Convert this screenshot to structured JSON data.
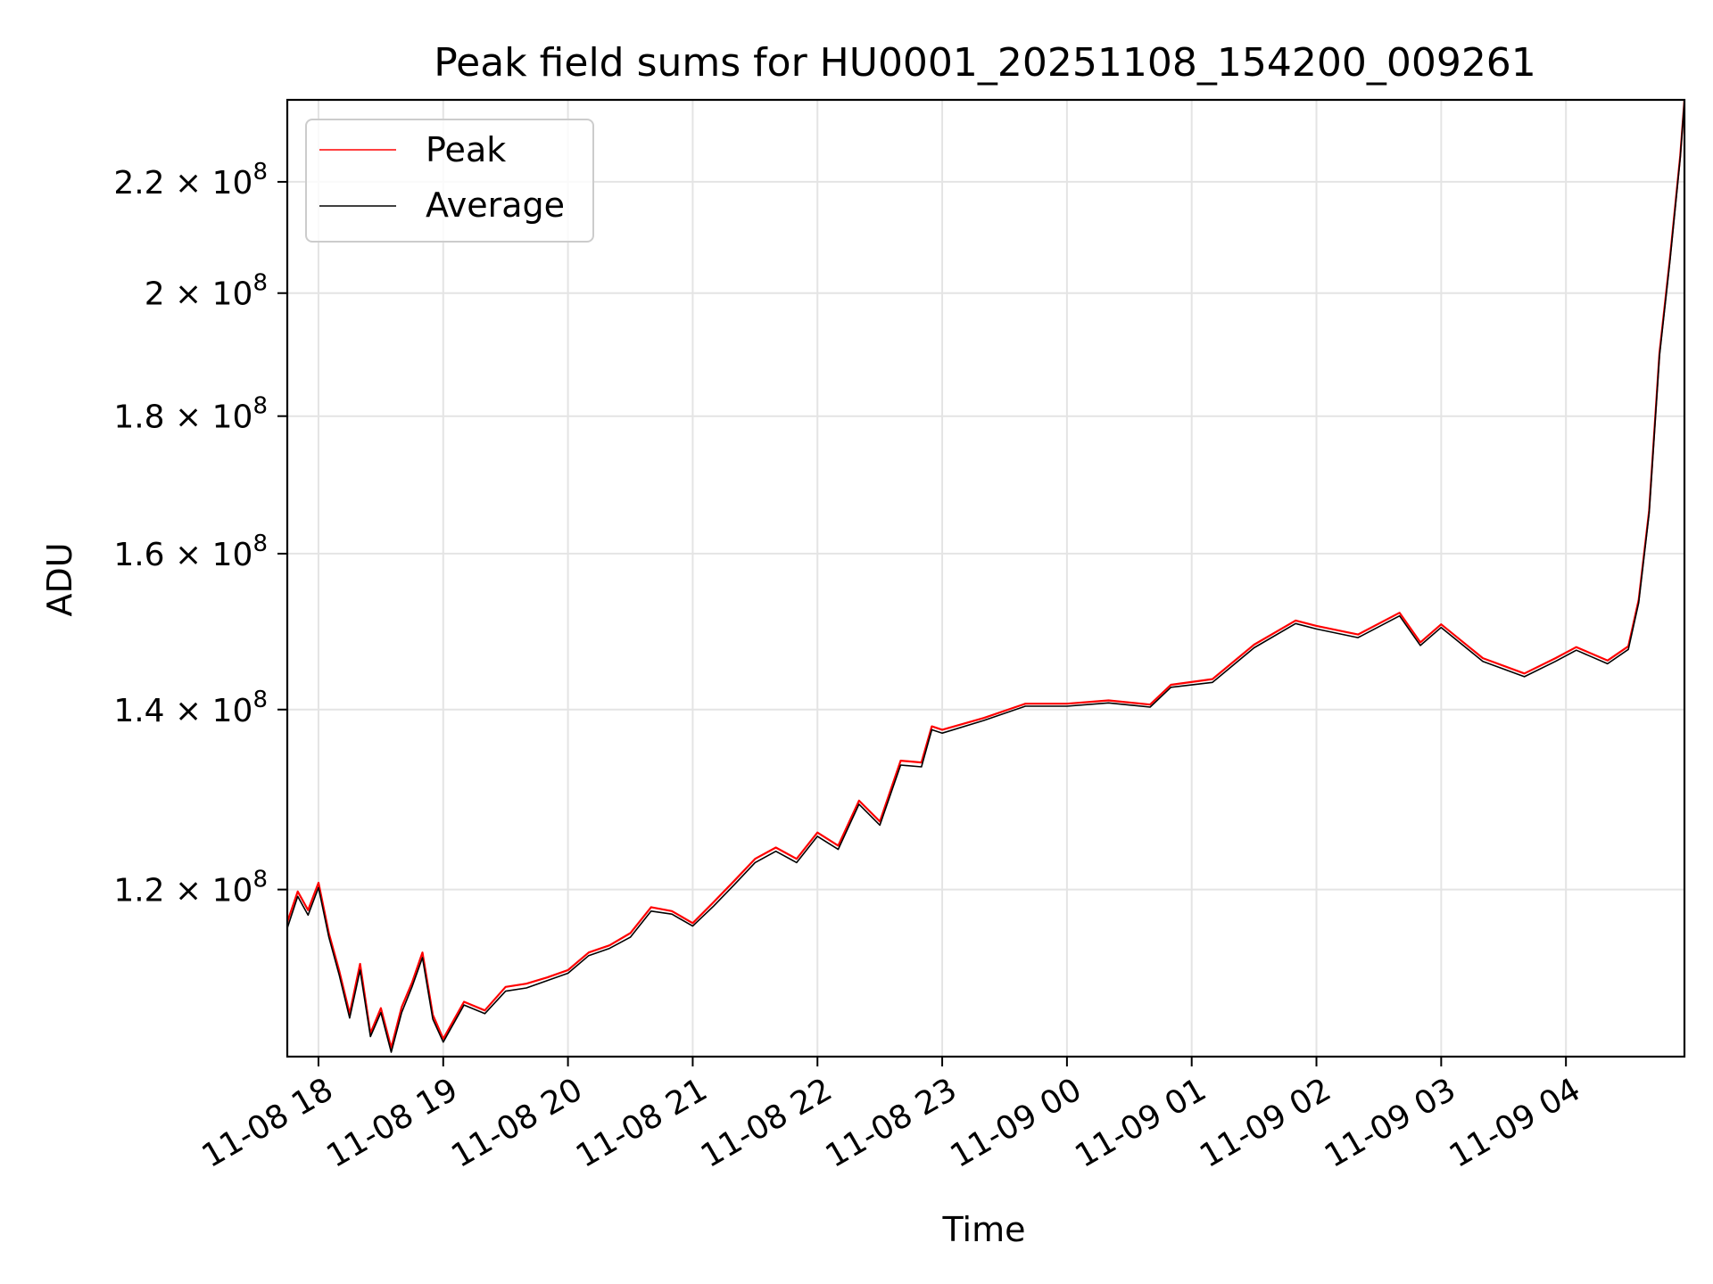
{
  "chart_data": {
    "type": "line",
    "title": "Peak field sums for HU0001_20251108_154200_009261",
    "xlabel": "Time",
    "ylabel": "ADU",
    "y_scale": "log",
    "ylim": [
      104000000,
      236000000
    ],
    "xlim": [
      "2025-11-08 17:45",
      "2025-11-09 04:57"
    ],
    "grid": true,
    "legend_position": "upper left",
    "x_ticks": [
      {
        "t": "2025-11-08 18:00",
        "label": "11-08 18"
      },
      {
        "t": "2025-11-08 19:00",
        "label": "11-08 19"
      },
      {
        "t": "2025-11-08 20:00",
        "label": "11-08 20"
      },
      {
        "t": "2025-11-08 21:00",
        "label": "11-08 21"
      },
      {
        "t": "2025-11-08 22:00",
        "label": "11-08 22"
      },
      {
        "t": "2025-11-08 23:00",
        "label": "11-08 23"
      },
      {
        "t": "2025-11-09 00:00",
        "label": "11-09 00"
      },
      {
        "t": "2025-11-09 01:00",
        "label": "11-09 01"
      },
      {
        "t": "2025-11-09 02:00",
        "label": "11-09 02"
      },
      {
        "t": "2025-11-09 03:00",
        "label": "11-09 03"
      },
      {
        "t": "2025-11-09 04:00",
        "label": "11-09 04"
      }
    ],
    "y_ticks": [
      {
        "value": 120000000,
        "mantissa": "1.2",
        "base": "10",
        "exp": "8"
      },
      {
        "value": 140000000,
        "mantissa": "1.4",
        "base": "10",
        "exp": "8"
      },
      {
        "value": 160000000,
        "mantissa": "1.6",
        "base": "10",
        "exp": "8"
      },
      {
        "value": 180000000,
        "mantissa": "1.8",
        "base": "10",
        "exp": "8"
      },
      {
        "value": 200000000,
        "mantissa": "2",
        "base": "10",
        "exp": "8"
      },
      {
        "value": 220000000,
        "mantissa": "2.2",
        "base": "10",
        "exp": "8"
      }
    ],
    "series": [
      {
        "name": "Peak",
        "color": "#ff0000",
        "x": [
          "2025-11-08 17:45",
          "2025-11-08 17:50",
          "2025-11-08 17:55",
          "2025-11-08 18:00",
          "2025-11-08 18:05",
          "2025-11-08 18:10",
          "2025-11-08 18:15",
          "2025-11-08 18:20",
          "2025-11-08 18:25",
          "2025-11-08 18:30",
          "2025-11-08 18:35",
          "2025-11-08 18:40",
          "2025-11-08 18:45",
          "2025-11-08 18:50",
          "2025-11-08 18:55",
          "2025-11-08 19:00",
          "2025-11-08 19:10",
          "2025-11-08 19:20",
          "2025-11-08 19:30",
          "2025-11-08 19:40",
          "2025-11-08 19:50",
          "2025-11-08 20:00",
          "2025-11-08 20:10",
          "2025-11-08 20:20",
          "2025-11-08 20:30",
          "2025-11-08 20:40",
          "2025-11-08 20:50",
          "2025-11-08 21:00",
          "2025-11-08 21:10",
          "2025-11-08 21:20",
          "2025-11-08 21:30",
          "2025-11-08 21:40",
          "2025-11-08 21:50",
          "2025-11-08 22:00",
          "2025-11-08 22:10",
          "2025-11-08 22:20",
          "2025-11-08 22:30",
          "2025-11-08 22:40",
          "2025-11-08 22:50",
          "2025-11-08 22:55",
          "2025-11-08 23:00",
          "2025-11-08 23:20",
          "2025-11-08 23:40",
          "2025-11-09 00:00",
          "2025-11-09 00:20",
          "2025-11-09 00:40",
          "2025-11-09 00:50",
          "2025-11-09 01:10",
          "2025-11-09 01:30",
          "2025-11-09 01:50",
          "2025-11-09 02:00",
          "2025-11-09 02:20",
          "2025-11-09 02:40",
          "2025-11-09 02:50",
          "2025-11-09 03:00",
          "2025-11-09 03:20",
          "2025-11-09 03:40",
          "2025-11-09 03:55",
          "2025-11-09 04:05",
          "2025-11-09 04:20",
          "2025-11-09 04:30",
          "2025-11-09 04:35",
          "2025-11-09 04:40",
          "2025-11-09 04:45",
          "2025-11-09 04:50",
          "2025-11-09 04:55",
          "2025-11-09 04:57"
        ],
        "values": [
          116700000,
          119800000,
          117900000,
          120700000,
          115600000,
          111900000,
          107900000,
          112600000,
          106100000,
          108400000,
          104800000,
          108500000,
          110800000,
          113700000,
          107800000,
          105600000,
          109000000,
          108200000,
          110400000,
          110700000,
          111300000,
          112000000,
          113700000,
          114400000,
          115600000,
          118200000,
          117800000,
          116600000,
          118700000,
          120900000,
          123200000,
          124400000,
          123200000,
          126000000,
          124600000,
          129500000,
          127200000,
          134000000,
          133800000,
          138000000,
          137600000,
          139000000,
          140700000,
          140700000,
          141100000,
          140600000,
          143000000,
          143700000,
          148000000,
          151100000,
          150400000,
          149300000,
          152100000,
          148300000,
          150600000,
          146300000,
          144400000,
          146300000,
          147700000,
          146000000,
          147800000,
          153800000,
          166000000,
          190000000,
          206000000,
          225000000,
          236000000
        ]
      },
      {
        "name": "Average",
        "color": "#000000",
        "x": [
          "2025-11-08 17:45",
          "2025-11-08 17:50",
          "2025-11-08 17:55",
          "2025-11-08 18:00",
          "2025-11-08 18:05",
          "2025-11-08 18:10",
          "2025-11-08 18:15",
          "2025-11-08 18:20",
          "2025-11-08 18:25",
          "2025-11-08 18:30",
          "2025-11-08 18:35",
          "2025-11-08 18:40",
          "2025-11-08 18:45",
          "2025-11-08 18:50",
          "2025-11-08 18:55",
          "2025-11-08 19:00",
          "2025-11-08 19:10",
          "2025-11-08 19:20",
          "2025-11-08 19:30",
          "2025-11-08 19:40",
          "2025-11-08 19:50",
          "2025-11-08 20:00",
          "2025-11-08 20:10",
          "2025-11-08 20:20",
          "2025-11-08 20:30",
          "2025-11-08 20:40",
          "2025-11-08 20:50",
          "2025-11-08 21:00",
          "2025-11-08 21:10",
          "2025-11-08 21:20",
          "2025-11-08 21:30",
          "2025-11-08 21:40",
          "2025-11-08 21:50",
          "2025-11-08 22:00",
          "2025-11-08 22:10",
          "2025-11-08 22:20",
          "2025-11-08 22:30",
          "2025-11-08 22:40",
          "2025-11-08 22:50",
          "2025-11-08 22:55",
          "2025-11-08 23:00",
          "2025-11-08 23:20",
          "2025-11-08 23:40",
          "2025-11-09 00:00",
          "2025-11-09 00:20",
          "2025-11-09 00:40",
          "2025-11-09 00:50",
          "2025-11-09 01:10",
          "2025-11-09 01:30",
          "2025-11-09 01:50",
          "2025-11-09 02:00",
          "2025-11-09 02:20",
          "2025-11-09 02:40",
          "2025-11-09 02:50",
          "2025-11-09 03:00",
          "2025-11-09 03:20",
          "2025-11-09 03:40",
          "2025-11-09 03:55",
          "2025-11-09 04:05",
          "2025-11-09 04:20",
          "2025-11-09 04:30",
          "2025-11-09 04:35",
          "2025-11-09 04:40",
          "2025-11-09 04:45",
          "2025-11-09 04:50",
          "2025-11-09 04:55",
          "2025-11-09 04:57"
        ],
        "values": [
          116100000,
          119300000,
          117400000,
          120200000,
          115200000,
          111500000,
          107500000,
          112000000,
          105800000,
          108000000,
          104400000,
          108000000,
          110400000,
          113200000,
          107400000,
          105300000,
          108700000,
          107900000,
          110000000,
          110300000,
          111000000,
          111700000,
          113400000,
          114100000,
          115200000,
          117800000,
          117500000,
          116300000,
          118300000,
          120500000,
          122800000,
          124000000,
          122800000,
          125600000,
          124200000,
          129100000,
          126800000,
          133500000,
          133300000,
          137600000,
          137200000,
          138700000,
          140400000,
          140400000,
          140800000,
          140300000,
          142700000,
          143300000,
          147600000,
          150700000,
          150000000,
          148900000,
          151700000,
          147900000,
          150200000,
          145900000,
          144000000,
          145900000,
          147300000,
          145600000,
          147400000,
          153400000,
          165600000,
          189500000,
          205500000,
          224600000,
          236000000
        ]
      }
    ]
  }
}
